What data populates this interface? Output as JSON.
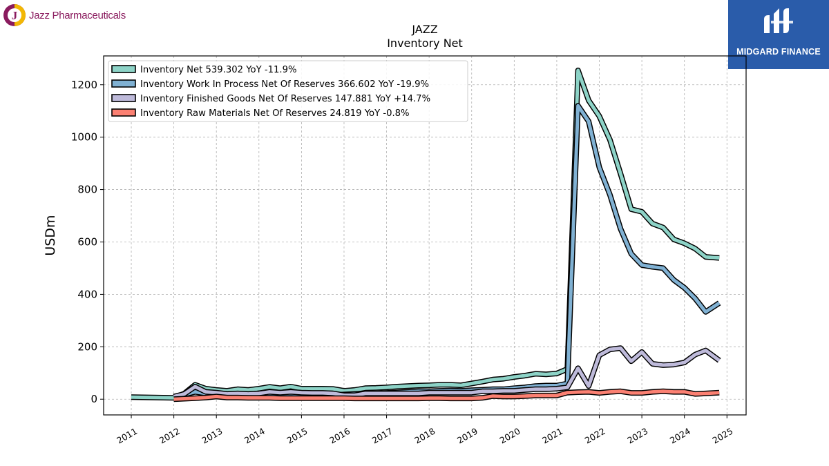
{
  "branding": {
    "left_logo_text": "Jazz Pharmaceuticals",
    "right_logo_text": "MIDGARD FINANCE"
  },
  "colors": {
    "inventory_net": "#8dd3c7",
    "wip": "#80b1d3",
    "finished_goods": "#bebada",
    "raw_materials": "#fb8072",
    "brand_blue": "#2a5caa",
    "jazz_purple": "#8a1b5e"
  },
  "chart_data": {
    "type": "line",
    "title": "JAZZ",
    "subtitle": "Inventory Net",
    "xlabel": "",
    "ylabel": "USDm",
    "xlim": [
      2010.35,
      2025.45
    ],
    "ylim": [
      -60,
      1310
    ],
    "yticks": [
      0,
      200,
      400,
      600,
      800,
      1000,
      1200
    ],
    "xticks": [
      2011,
      2012,
      2013,
      2014,
      2015,
      2016,
      2017,
      2018,
      2019,
      2020,
      2021,
      2022,
      2023,
      2024,
      2025
    ],
    "grid": true,
    "legend_position": "top-left",
    "series": [
      {
        "name": "Inventory Net",
        "legend_label": "Inventory Net  539.302 YoY -11.9%",
        "color": "#8dd3c7",
        "points": [
          [
            2011.0,
            8
          ],
          [
            2012.0,
            5
          ],
          [
            2012.25,
            22
          ],
          [
            2012.5,
            55
          ],
          [
            2012.75,
            40
          ],
          [
            2013.0,
            35
          ],
          [
            2013.25,
            32
          ],
          [
            2013.5,
            38
          ],
          [
            2013.75,
            35
          ],
          [
            2014.0,
            40
          ],
          [
            2014.25,
            47
          ],
          [
            2014.5,
            42
          ],
          [
            2014.75,
            48
          ],
          [
            2015.0,
            40
          ],
          [
            2015.25,
            40
          ],
          [
            2015.5,
            40
          ],
          [
            2015.75,
            39
          ],
          [
            2016.0,
            32
          ],
          [
            2016.25,
            35
          ],
          [
            2016.5,
            42
          ],
          [
            2016.75,
            43
          ],
          [
            2017.0,
            45
          ],
          [
            2017.25,
            48
          ],
          [
            2017.5,
            50
          ],
          [
            2017.75,
            52
          ],
          [
            2018.0,
            53
          ],
          [
            2018.25,
            55
          ],
          [
            2018.5,
            55
          ],
          [
            2018.75,
            53
          ],
          [
            2019.0,
            60
          ],
          [
            2019.25,
            67
          ],
          [
            2019.5,
            75
          ],
          [
            2019.75,
            78
          ],
          [
            2020.0,
            85
          ],
          [
            2020.25,
            90
          ],
          [
            2020.5,
            97
          ],
          [
            2020.75,
            95
          ],
          [
            2021.0,
            98
          ],
          [
            2021.25,
            115
          ],
          [
            2021.5,
            1255
          ],
          [
            2021.75,
            1140
          ],
          [
            2022.0,
            1080
          ],
          [
            2022.25,
            990
          ],
          [
            2022.5,
            860
          ],
          [
            2022.75,
            725
          ],
          [
            2023.0,
            715
          ],
          [
            2023.25,
            670
          ],
          [
            2023.5,
            655
          ],
          [
            2023.75,
            610
          ],
          [
            2024.0,
            595
          ],
          [
            2024.25,
            575
          ],
          [
            2024.5,
            543
          ],
          [
            2024.82,
            539
          ]
        ]
      },
      {
        "name": "Inventory Work In Process Net Of Reserves",
        "legend_label": "Inventory Work In Process Net Of Reserves  366.602 YoY -19.9%",
        "color": "#80b1d3",
        "points": [
          [
            2012.0,
            8
          ],
          [
            2012.25,
            18
          ],
          [
            2012.5,
            28
          ],
          [
            2012.75,
            22
          ],
          [
            2013.0,
            22
          ],
          [
            2013.25,
            18
          ],
          [
            2013.5,
            20
          ],
          [
            2013.75,
            18
          ],
          [
            2014.0,
            20
          ],
          [
            2014.25,
            22
          ],
          [
            2014.5,
            20
          ],
          [
            2014.75,
            22
          ],
          [
            2015.0,
            18
          ],
          [
            2015.25,
            18
          ],
          [
            2015.5,
            16
          ],
          [
            2015.75,
            15
          ],
          [
            2016.0,
            18
          ],
          [
            2016.25,
            20
          ],
          [
            2016.5,
            22
          ],
          [
            2016.75,
            22
          ],
          [
            2017.0,
            24
          ],
          [
            2017.25,
            26
          ],
          [
            2017.5,
            28
          ],
          [
            2017.75,
            30
          ],
          [
            2018.0,
            30
          ],
          [
            2018.25,
            32
          ],
          [
            2018.5,
            33
          ],
          [
            2018.75,
            32
          ],
          [
            2019.0,
            34
          ],
          [
            2019.25,
            36
          ],
          [
            2019.5,
            38
          ],
          [
            2019.75,
            38
          ],
          [
            2020.0,
            42
          ],
          [
            2020.25,
            45
          ],
          [
            2020.5,
            50
          ],
          [
            2020.75,
            52
          ],
          [
            2021.0,
            52
          ],
          [
            2021.25,
            60
          ],
          [
            2021.5,
            1120
          ],
          [
            2021.75,
            1060
          ],
          [
            2022.0,
            885
          ],
          [
            2022.25,
            780
          ],
          [
            2022.5,
            650
          ],
          [
            2022.75,
            555
          ],
          [
            2023.0,
            512
          ],
          [
            2023.25,
            505
          ],
          [
            2023.5,
            500
          ],
          [
            2023.75,
            455
          ],
          [
            2024.0,
            425
          ],
          [
            2024.25,
            385
          ],
          [
            2024.5,
            333
          ],
          [
            2024.82,
            367
          ]
        ]
      },
      {
        "name": "Inventory Finished Goods Net Of Reserves",
        "legend_label": "Inventory Finished Goods Net Of Reserves  147.881 YoY +14.7%",
        "color": "#bebada",
        "points": [
          [
            2012.0,
            10
          ],
          [
            2012.25,
            20
          ],
          [
            2012.5,
            48
          ],
          [
            2012.75,
            28
          ],
          [
            2013.0,
            25
          ],
          [
            2013.25,
            20
          ],
          [
            2013.5,
            22
          ],
          [
            2013.75,
            20
          ],
          [
            2014.0,
            22
          ],
          [
            2014.25,
            28
          ],
          [
            2014.5,
            25
          ],
          [
            2014.75,
            28
          ],
          [
            2015.0,
            25
          ],
          [
            2015.25,
            24
          ],
          [
            2015.5,
            24
          ],
          [
            2015.75,
            22
          ],
          [
            2016.0,
            15
          ],
          [
            2016.25,
            15
          ],
          [
            2016.5,
            22
          ],
          [
            2016.75,
            22
          ],
          [
            2017.0,
            22
          ],
          [
            2017.25,
            22
          ],
          [
            2017.5,
            22
          ],
          [
            2017.75,
            22
          ],
          [
            2018.0,
            25
          ],
          [
            2018.25,
            25
          ],
          [
            2018.5,
            25
          ],
          [
            2018.75,
            25
          ],
          [
            2019.0,
            25
          ],
          [
            2019.25,
            30
          ],
          [
            2019.5,
            30
          ],
          [
            2019.75,
            32
          ],
          [
            2020.0,
            32
          ],
          [
            2020.25,
            35
          ],
          [
            2020.5,
            38
          ],
          [
            2020.75,
            38
          ],
          [
            2021.0,
            40
          ],
          [
            2021.25,
            45
          ],
          [
            2021.5,
            118
          ],
          [
            2021.75,
            50
          ],
          [
            2022.0,
            168
          ],
          [
            2022.25,
            190
          ],
          [
            2022.5,
            195
          ],
          [
            2022.75,
            145
          ],
          [
            2023.0,
            180
          ],
          [
            2023.25,
            135
          ],
          [
            2023.5,
            130
          ],
          [
            2023.75,
            132
          ],
          [
            2024.0,
            140
          ],
          [
            2024.25,
            170
          ],
          [
            2024.5,
            186
          ],
          [
            2024.82,
            148
          ]
        ]
      },
      {
        "name": "Inventory Raw Materials Net Of Reserves",
        "legend_label": "Inventory Raw Materials Net Of Reserves  24.819 YoY -0.8%",
        "color": "#fb8072",
        "points": [
          [
            2012.0,
            0
          ],
          [
            2012.25,
            2
          ],
          [
            2012.5,
            4
          ],
          [
            2012.75,
            6
          ],
          [
            2013.0,
            10
          ],
          [
            2013.25,
            6
          ],
          [
            2013.5,
            6
          ],
          [
            2013.75,
            5
          ],
          [
            2014.0,
            5
          ],
          [
            2014.25,
            5
          ],
          [
            2014.5,
            4
          ],
          [
            2014.75,
            4
          ],
          [
            2015.0,
            4
          ],
          [
            2015.25,
            4
          ],
          [
            2015.5,
            4
          ],
          [
            2015.75,
            4
          ],
          [
            2016.0,
            4
          ],
          [
            2016.25,
            3
          ],
          [
            2016.5,
            3
          ],
          [
            2016.75,
            3
          ],
          [
            2017.0,
            3
          ],
          [
            2017.25,
            3
          ],
          [
            2017.5,
            3
          ],
          [
            2017.75,
            3
          ],
          [
            2018.0,
            4
          ],
          [
            2018.25,
            4
          ],
          [
            2018.5,
            3
          ],
          [
            2018.75,
            3
          ],
          [
            2019.0,
            3
          ],
          [
            2019.25,
            5
          ],
          [
            2019.5,
            12
          ],
          [
            2019.75,
            10
          ],
          [
            2020.0,
            10
          ],
          [
            2020.25,
            12
          ],
          [
            2020.5,
            14
          ],
          [
            2020.75,
            14
          ],
          [
            2021.0,
            14
          ],
          [
            2021.25,
            25
          ],
          [
            2021.5,
            27
          ],
          [
            2021.75,
            28
          ],
          [
            2022.0,
            24
          ],
          [
            2022.25,
            28
          ],
          [
            2022.5,
            30
          ],
          [
            2022.75,
            24
          ],
          [
            2023.0,
            24
          ],
          [
            2023.25,
            28
          ],
          [
            2023.5,
            30
          ],
          [
            2023.75,
            28
          ],
          [
            2024.0,
            28
          ],
          [
            2024.25,
            20
          ],
          [
            2024.5,
            22
          ],
          [
            2024.82,
            25
          ]
        ]
      }
    ]
  }
}
